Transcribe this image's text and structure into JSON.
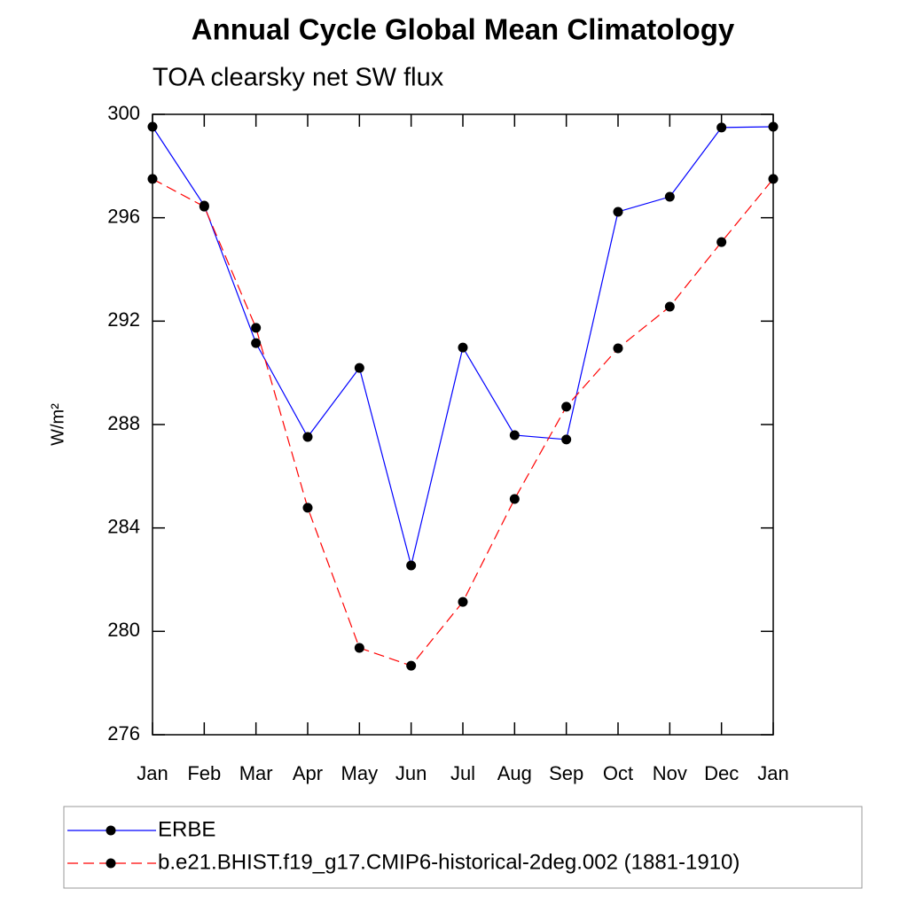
{
  "chart_data": {
    "type": "line",
    "title": "Annual Cycle Global Mean Climatology",
    "subtitle": "TOA clearsky net SW flux",
    "ylabel": "W/m²",
    "categories": [
      "Jan",
      "Feb",
      "Mar",
      "Apr",
      "May",
      "Jun",
      "Jul",
      "Aug",
      "Sep",
      "Oct",
      "Nov",
      "Dec",
      "Jan"
    ],
    "series": [
      {
        "name": "ERBE",
        "color": "#0000ff",
        "linestyle": "solid",
        "values": [
          299.52,
          296.47,
          291.15,
          287.52,
          290.19,
          282.55,
          290.98,
          287.59,
          287.42,
          296.23,
          296.81,
          299.49,
          299.52
        ]
      },
      {
        "name": "b.e21.BHIST.f19_g17.CMIP6-historical-2deg.002 (1881-1910)",
        "color": "#ff0000",
        "linestyle": "dashed",
        "values": [
          297.5,
          296.43,
          291.74,
          284.78,
          279.36,
          278.67,
          281.14,
          285.12,
          288.69,
          290.95,
          292.56,
          295.06,
          297.5
        ]
      }
    ],
    "ylim": [
      276,
      300
    ],
    "yticks": [
      276,
      280,
      284,
      288,
      292,
      296,
      300
    ]
  }
}
